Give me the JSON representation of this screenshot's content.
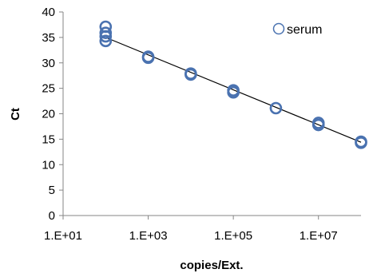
{
  "chart_data": {
    "type": "scatter",
    "xscale": "log",
    "xlabel": "copies/Ext.",
    "ylabel": "Ct",
    "xlim": [
      10,
      100000000
    ],
    "ylim": [
      0,
      40
    ],
    "x_ticks": [
      10,
      1000,
      100000,
      10000000
    ],
    "x_tick_labels": [
      "1.E+01",
      "1.E+03",
      "1.E+05",
      "1.E+07"
    ],
    "y_ticks": [
      0,
      5,
      10,
      15,
      20,
      25,
      30,
      35,
      40
    ],
    "y_tick_labels": [
      "0",
      "5",
      "10",
      "15",
      "20",
      "25",
      "30",
      "35",
      "40"
    ],
    "grid": false,
    "legend_position": "top-right",
    "series": [
      {
        "name": "serum",
        "color": "#4a72b0",
        "marker": "open-circle",
        "x": [
          100,
          100,
          100,
          100,
          1000,
          1000,
          10000,
          10000,
          100000,
          100000,
          1000000,
          10000000,
          10000000,
          100000000,
          100000000
        ],
        "y": [
          37.1,
          35.9,
          35.2,
          34.3,
          31.2,
          31.0,
          27.9,
          27.7,
          24.6,
          24.2,
          21.1,
          18.2,
          17.8,
          14.5,
          14.3
        ]
      }
    ],
    "trendline": {
      "type": "linear-in-log10-x",
      "color": "#000000",
      "x": [
        100,
        100000000
      ],
      "y": [
        35.0,
        14.4
      ]
    }
  }
}
